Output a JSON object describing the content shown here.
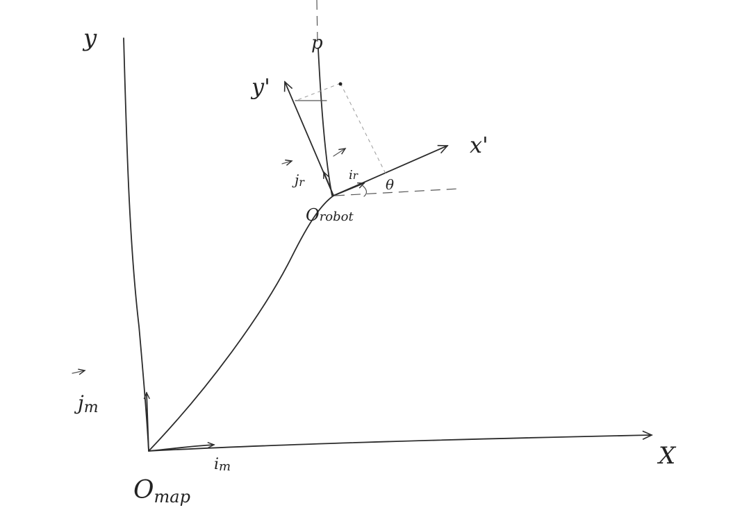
{
  "diagram": {
    "map_frame": {
      "x_label": "X",
      "y_label": "y",
      "origin_label": "O",
      "origin_sub": "map",
      "unit_i_label": "i",
      "unit_i_sub": "m",
      "unit_j_label": "j",
      "unit_j_sub": "m"
    },
    "robot_frame": {
      "x_label": "x'",
      "y_label": "y'",
      "origin_label": "O",
      "origin_sub": "robot",
      "unit_i_label": "i",
      "unit_i_sub": "r",
      "unit_j_label": "j",
      "unit_j_sub": "r",
      "angle_label": "θ"
    },
    "point_label": "p"
  },
  "colors": {
    "ink": "#2b2b2b",
    "background": "#ffffff"
  }
}
